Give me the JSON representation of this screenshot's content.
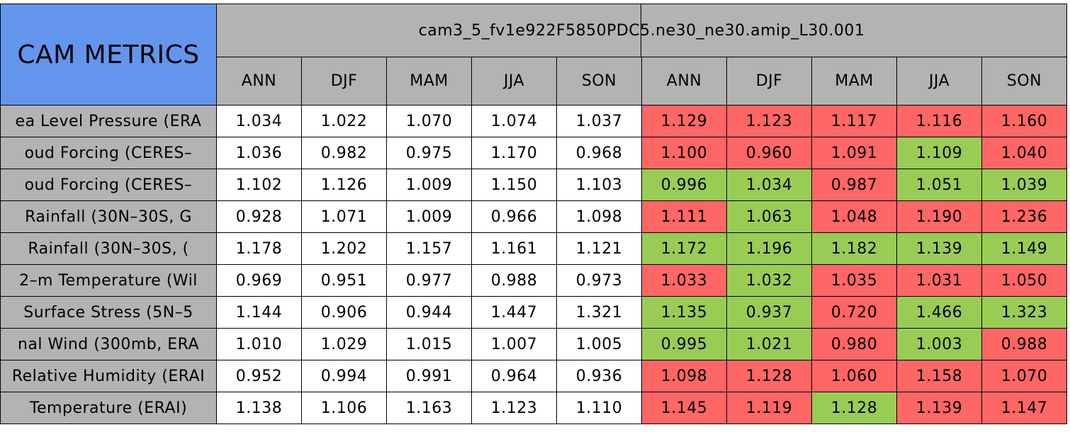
{
  "table": {
    "corner": "CAM METRICS",
    "run": "cam3_5_fv1e922F5850PDC5.ne30_ne30.amip_L30.001",
    "seasons": [
      "ANN",
      "DJF",
      "MAM",
      "JJA",
      "SON",
      "ANN",
      "DJF",
      "MAM",
      "JJA",
      "SON"
    ],
    "header_color": "#b3b3b3",
    "corner_color": "#6495ed",
    "rows": [
      {
        "label": "ea Level Pressure (ERA",
        "values": [
          "1.034",
          "1.022",
          "1.070",
          "1.074",
          "1.037",
          "1.129",
          "1.123",
          "1.117",
          "1.116",
          "1.160"
        ],
        "colors": [
          "#ffffff",
          "#ffffff",
          "#ffffff",
          "#ffffff",
          "#ffffff",
          "#ff6666",
          "#ff6666",
          "#ff6666",
          "#ff6666",
          "#ff6666"
        ]
      },
      {
        "label": "oud Forcing (CERES–",
        "values": [
          "1.036",
          "0.982",
          "0.975",
          "1.170",
          "0.968",
          "1.100",
          "0.960",
          "1.091",
          "1.109",
          "1.040"
        ],
        "colors": [
          "#ffffff",
          "#ffffff",
          "#ffffff",
          "#ffffff",
          "#ffffff",
          "#ff6666",
          "#ff6666",
          "#ff6666",
          "#99cc55",
          "#ff6666"
        ]
      },
      {
        "label": "oud Forcing (CERES–",
        "values": [
          "1.102",
          "1.126",
          "1.009",
          "1.150",
          "1.103",
          "0.996",
          "1.034",
          "0.987",
          "1.051",
          "1.039"
        ],
        "colors": [
          "#ffffff",
          "#ffffff",
          "#ffffff",
          "#ffffff",
          "#ffffff",
          "#99cc55",
          "#99cc55",
          "#ff6666",
          "#99cc55",
          "#99cc55"
        ]
      },
      {
        "label": "Rainfall (30N–30S, G",
        "values": [
          "0.928",
          "1.071",
          "1.009",
          "0.966",
          "1.098",
          "1.111",
          "1.063",
          "1.048",
          "1.190",
          "1.236"
        ],
        "colors": [
          "#ffffff",
          "#ffffff",
          "#ffffff",
          "#ffffff",
          "#ffffff",
          "#ff6666",
          "#99cc55",
          "#ff6666",
          "#ff6666",
          "#ff6666"
        ]
      },
      {
        "label": "Rainfall (30N–30S, (",
        "values": [
          "1.178",
          "1.202",
          "1.157",
          "1.161",
          "1.121",
          "1.172",
          "1.196",
          "1.182",
          "1.139",
          "1.149"
        ],
        "colors": [
          "#ffffff",
          "#ffffff",
          "#ffffff",
          "#ffffff",
          "#ffffff",
          "#99cc55",
          "#99cc55",
          "#99cc55",
          "#99cc55",
          "#99cc55"
        ]
      },
      {
        "label": "2–m Temperature (Wil",
        "values": [
          "0.969",
          "0.951",
          "0.977",
          "0.988",
          "0.973",
          "1.033",
          "1.032",
          "1.035",
          "1.031",
          "1.050"
        ],
        "colors": [
          "#ffffff",
          "#ffffff",
          "#ffffff",
          "#ffffff",
          "#ffffff",
          "#ff6666",
          "#99cc55",
          "#ff6666",
          "#ff6666",
          "#ff6666"
        ]
      },
      {
        "label": "Surface Stress (5N–5",
        "values": [
          "1.144",
          "0.906",
          "0.944",
          "1.447",
          "1.321",
          "1.135",
          "0.937",
          "0.720",
          "1.466",
          "1.323"
        ],
        "colors": [
          "#ffffff",
          "#ffffff",
          "#ffffff",
          "#ffffff",
          "#ffffff",
          "#99cc55",
          "#99cc55",
          "#ff6666",
          "#99cc55",
          "#99cc55"
        ]
      },
      {
        "label": "nal Wind (300mb, ERA",
        "values": [
          "1.010",
          "1.029",
          "1.015",
          "1.007",
          "1.005",
          "0.995",
          "1.021",
          "0.980",
          "1.003",
          "0.988"
        ],
        "colors": [
          "#ffffff",
          "#ffffff",
          "#ffffff",
          "#ffffff",
          "#ffffff",
          "#99cc55",
          "#99cc55",
          "#ff6666",
          "#99cc55",
          "#ff6666"
        ]
      },
      {
        "label": "Relative Humidity (ERAI",
        "values": [
          "0.952",
          "0.994",
          "0.991",
          "0.964",
          "0.936",
          "1.098",
          "1.128",
          "1.060",
          "1.158",
          "1.070"
        ],
        "colors": [
          "#ffffff",
          "#ffffff",
          "#ffffff",
          "#ffffff",
          "#ffffff",
          "#ff6666",
          "#ff6666",
          "#ff6666",
          "#ff6666",
          "#ff6666"
        ]
      },
      {
        "label": "Temperature (ERAI)",
        "values": [
          "1.138",
          "1.106",
          "1.163",
          "1.123",
          "1.110",
          "1.145",
          "1.119",
          "1.128",
          "1.139",
          "1.147"
        ],
        "colors": [
          "#ffffff",
          "#ffffff",
          "#ffffff",
          "#ffffff",
          "#ffffff",
          "#ff6666",
          "#ff6666",
          "#99cc55",
          "#ff6666",
          "#ff6666"
        ]
      }
    ]
  }
}
